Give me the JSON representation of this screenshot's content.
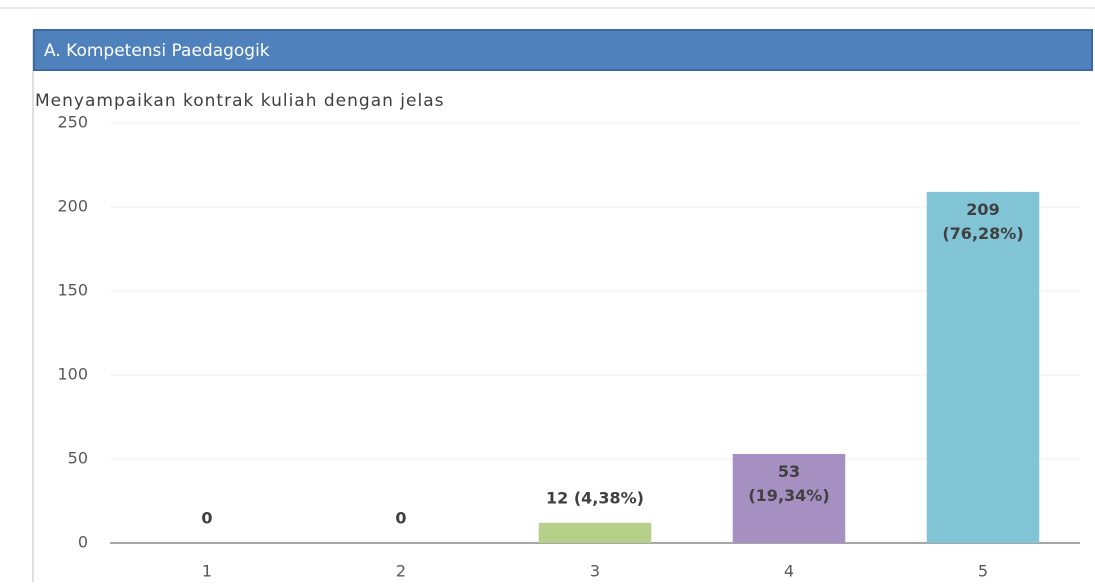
{
  "header": {
    "title": "A. Kompetensi Paedagogik"
  },
  "chart_data": {
    "type": "bar",
    "title": "Menyampaikan kontrak kuliah dengan jelas",
    "categories": [
      "1",
      "2",
      "3",
      "4",
      "5"
    ],
    "values": [
      0,
      0,
      12,
      53,
      209
    ],
    "value_labels": [
      "0",
      "0",
      "12 (4,38%)",
      "53 (19,34%)",
      "209 (76,28%)"
    ],
    "colors": [
      "#4f81bd",
      "#c0504d",
      "#b6cf89",
      "#a590c1",
      "#80c4d6"
    ],
    "ylim": [
      0,
      250
    ],
    "yticks": [
      0,
      50,
      100,
      150,
      200,
      250
    ],
    "grid": true
  }
}
